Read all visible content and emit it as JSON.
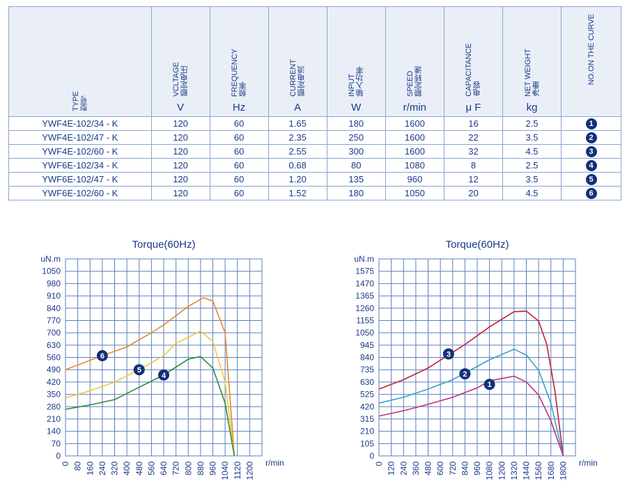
{
  "table": {
    "headers": [
      {
        "en": "TYPE",
        "cn": "型号",
        "unit": ""
      },
      {
        "en": "VCLTAGE",
        "cn": "额定电压",
        "unit": "V"
      },
      {
        "en": "FREQUENCY",
        "cn": "频率",
        "unit": "Hz"
      },
      {
        "en": "CURRENT",
        "cn": "额定电流",
        "unit": "A"
      },
      {
        "en": "INPUT",
        "cn": "输入功率",
        "unit": "W"
      },
      {
        "en": "SPEED",
        "cn": "额定转速",
        "unit": "r/min"
      },
      {
        "en": "CAPACITANCE",
        "cn": "电容",
        "unit": "μ F"
      },
      {
        "en": "NET WEIGHT",
        "cn": "净重",
        "unit": "kg"
      },
      {
        "en": "NO.ON THE CURVE",
        "cn": "",
        "unit": ""
      }
    ],
    "rows": [
      [
        "YWF4E-102/34 - K",
        "120",
        "60",
        "1.65",
        "180",
        "1600",
        "16",
        "2.5",
        "1"
      ],
      [
        "YWF4E-102/47 - K",
        "120",
        "60",
        "2.35",
        "250",
        "1600",
        "22",
        "3.5",
        "2"
      ],
      [
        "YWF4E-102/60 - K",
        "120",
        "60",
        "2.55",
        "300",
        "1600",
        "32",
        "4.5",
        "3"
      ],
      [
        "YWF6E-102/34 - K",
        "120",
        "60",
        "0.68",
        "80",
        "1080",
        "8",
        "2.5",
        "4"
      ],
      [
        "YWF6E-102/47 - K",
        "120",
        "60",
        "1.20",
        "135",
        "960",
        "12",
        "3.5",
        "5"
      ],
      [
        "YWF6E-102/60 - K",
        "120",
        "60",
        "1.52",
        "180",
        "1050",
        "20",
        "4.5",
        "6"
      ]
    ]
  },
  "chart_data": [
    {
      "type": "line",
      "title": "Torque(60Hz)",
      "ylabel": "uN.m",
      "xlabel": "r/min",
      "grid": true,
      "xlim": [
        0,
        1280
      ],
      "ylim": [
        0,
        1120
      ],
      "xticks": [
        0,
        80,
        160,
        240,
        320,
        400,
        480,
        560,
        640,
        720,
        800,
        880,
        960,
        1040,
        1120,
        1200
      ],
      "yticks": [
        0,
        70,
        140,
        210,
        280,
        350,
        420,
        490,
        560,
        630,
        700,
        770,
        840,
        910,
        980,
        1050
      ],
      "series": [
        {
          "name": "6",
          "color": "#e08a2a",
          "label_at": [
            240,
            570
          ],
          "points": [
            [
              0,
              490
            ],
            [
              240,
              570
            ],
            [
              400,
              620
            ],
            [
              560,
              700
            ],
            [
              640,
              745
            ],
            [
              800,
              850
            ],
            [
              900,
              900
            ],
            [
              960,
              880
            ],
            [
              1040,
              700
            ],
            [
              1100,
              0
            ]
          ]
        },
        {
          "name": "5",
          "color": "#efc93a",
          "label_at": [
            480,
            490
          ],
          "points": [
            [
              0,
              330
            ],
            [
              160,
              370
            ],
            [
              320,
              420
            ],
            [
              480,
              490
            ],
            [
              640,
              570
            ],
            [
              720,
              640
            ],
            [
              880,
              710
            ],
            [
              960,
              650
            ],
            [
              1040,
              420
            ],
            [
              1100,
              0
            ]
          ]
        },
        {
          "name": "4",
          "color": "#2f8a3a",
          "label_at": [
            640,
            460
          ],
          "points": [
            [
              0,
              265
            ],
            [
              160,
              290
            ],
            [
              320,
              320
            ],
            [
              480,
              390
            ],
            [
              640,
              460
            ],
            [
              800,
              550
            ],
            [
              880,
              565
            ],
            [
              960,
              500
            ],
            [
              1040,
              300
            ],
            [
              1100,
              0
            ]
          ]
        }
      ]
    },
    {
      "type": "line",
      "title": "Torque(60Hz)",
      "ylabel": "uN.m",
      "xlabel": "r/min",
      "grid": true,
      "xlim": [
        0,
        1920
      ],
      "ylim": [
        0,
        1680
      ],
      "xticks": [
        0,
        120,
        240,
        360,
        480,
        600,
        720,
        840,
        960,
        1080,
        1200,
        1320,
        1440,
        1560,
        1680,
        1800
      ],
      "yticks": [
        0,
        105,
        210,
        315,
        420,
        525,
        630,
        735,
        840,
        945,
        1050,
        1155,
        1260,
        1365,
        1470,
        1575
      ],
      "series": [
        {
          "name": "3",
          "color": "#c02030",
          "label_at": [
            680,
            870
          ],
          "points": [
            [
              0,
              570
            ],
            [
              240,
              650
            ],
            [
              480,
              750
            ],
            [
              840,
              950
            ],
            [
              1080,
              1100
            ],
            [
              1320,
              1230
            ],
            [
              1440,
              1235
            ],
            [
              1560,
              1150
            ],
            [
              1640,
              950
            ],
            [
              1720,
              550
            ],
            [
              1800,
              0
            ]
          ]
        },
        {
          "name": "2",
          "color": "#3aa0c8",
          "label_at": [
            840,
            700
          ],
          "points": [
            [
              0,
              450
            ],
            [
              240,
              500
            ],
            [
              480,
              570
            ],
            [
              720,
              650
            ],
            [
              1080,
              820
            ],
            [
              1320,
              910
            ],
            [
              1440,
              860
            ],
            [
              1560,
              730
            ],
            [
              1680,
              450
            ],
            [
              1800,
              0
            ]
          ]
        },
        {
          "name": "1",
          "color": "#c0307a",
          "label_at": [
            1080,
            610
          ],
          "points": [
            [
              0,
              340
            ],
            [
              240,
              385
            ],
            [
              480,
              440
            ],
            [
              720,
              500
            ],
            [
              960,
              580
            ],
            [
              1080,
              640
            ],
            [
              1320,
              680
            ],
            [
              1440,
              630
            ],
            [
              1560,
              520
            ],
            [
              1680,
              300
            ],
            [
              1800,
              0
            ]
          ]
        }
      ]
    }
  ]
}
